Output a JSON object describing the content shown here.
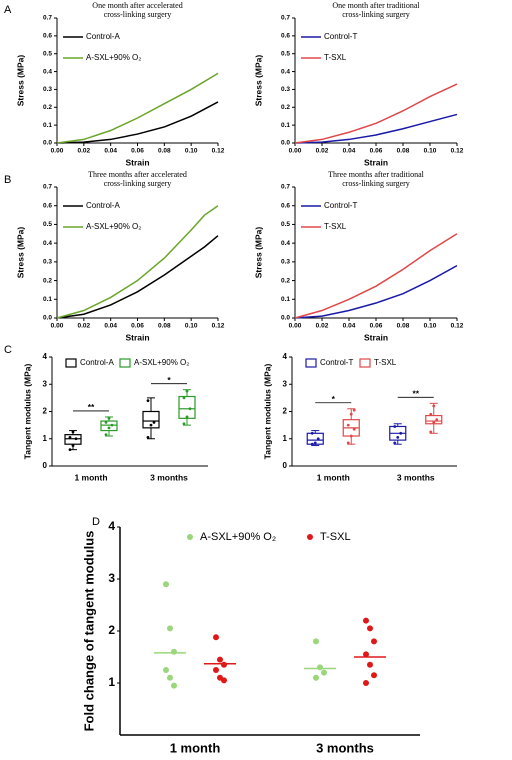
{
  "panel_labels": [
    "A",
    "B",
    "C",
    "D"
  ],
  "chart_data": [
    {
      "type": "line",
      "title": [
        "One month after accelerated",
        "cross-linking  surgery"
      ],
      "x_label": "Strain",
      "y_label": "Stress (MPa)",
      "x": [
        0,
        0.02,
        0.04,
        0.06,
        0.08,
        0.1,
        0.12
      ],
      "xlim": [
        0,
        0.12
      ],
      "ylim": [
        0,
        0.7
      ],
      "xticks": [
        {
          "value": 0,
          "label": "0.00"
        },
        0.02,
        0.04,
        0.06,
        0.08,
        {
          "value": 0.1,
          "label": "0.10"
        },
        0.12
      ],
      "yticks": [
        {
          "value": 0,
          "label": "0.0"
        },
        0.1,
        0.2,
        0.3,
        0.4,
        0.5,
        0.6,
        0.7
      ],
      "legend": "upper left",
      "series": [
        {
          "name": "Control-A",
          "color": "#000000",
          "values": [
            0,
            0.005,
            0.02,
            0.05,
            0.09,
            0.15,
            0.23
          ]
        },
        {
          "name": "A-SXL+90% O₂",
          "color": "#6aa52a",
          "values": [
            0,
            0.02,
            0.07,
            0.14,
            0.22,
            0.3,
            0.39
          ]
        }
      ]
    },
    {
      "type": "line",
      "title": [
        "One month after traditional",
        "cross-linking surgery"
      ],
      "x_label": "Strain",
      "y_label": "Stress (MPa)",
      "x": [
        0,
        0.02,
        0.04,
        0.06,
        0.08,
        0.1,
        0.12
      ],
      "xlim": [
        0,
        0.12
      ],
      "ylim": [
        0,
        0.7
      ],
      "xticks": [
        {
          "value": 0,
          "label": "0.00"
        },
        0.02,
        0.04,
        0.06,
        0.08,
        {
          "value": 0.1,
          "label": "0.10"
        },
        0.12
      ],
      "yticks": [
        {
          "value": 0,
          "label": "0.0"
        },
        0.1,
        0.2,
        0.3,
        0.4,
        0.5,
        0.6,
        0.7
      ],
      "legend": "upper left",
      "series": [
        {
          "name": "Control-T",
          "color": "#1a1aa8",
          "values": [
            0,
            0.005,
            0.02,
            0.045,
            0.08,
            0.12,
            0.16
          ]
        },
        {
          "name": "T-SXL",
          "color": "#e04848",
          "values": [
            0,
            0.02,
            0.06,
            0.11,
            0.18,
            0.26,
            0.33
          ]
        }
      ]
    },
    {
      "type": "line",
      "title": [
        "Three months after accelerated",
        "cross-linking surgery"
      ],
      "x_label": "Strain",
      "y_label": "Stress (MPa)",
      "x": [
        0,
        0.02,
        0.04,
        0.06,
        0.08,
        0.1,
        0.11,
        0.12
      ],
      "xlim": [
        0,
        0.12
      ],
      "ylim": [
        0,
        0.7
      ],
      "xticks": [
        {
          "value": 0,
          "label": "0.00"
        },
        0.02,
        0.04,
        0.06,
        0.08,
        {
          "value": 0.1,
          "label": "0.10"
        },
        0.12
      ],
      "yticks": [
        {
          "value": 0,
          "label": "0.0"
        },
        0.1,
        0.2,
        0.3,
        0.4,
        0.5,
        0.6,
        0.7
      ],
      "legend": "upper left",
      "series": [
        {
          "name": "Control-A",
          "color": "#000000",
          "values": [
            0,
            0.02,
            0.07,
            0.14,
            0.23,
            0.33,
            0.38,
            0.44
          ]
        },
        {
          "name": "A-SXL+90% O₂",
          "color": "#6aa52a",
          "values": [
            0,
            0.04,
            0.11,
            0.2,
            0.32,
            0.47,
            0.55,
            0.6
          ]
        }
      ]
    },
    {
      "type": "line",
      "title": [
        "Three months after traditional",
        "cross-linking surgery"
      ],
      "x_label": "Strain",
      "y_label": "Stress (MPa)",
      "x": [
        0,
        0.02,
        0.04,
        0.06,
        0.08,
        0.1,
        0.12
      ],
      "xlim": [
        0,
        0.12
      ],
      "ylim": [
        0,
        0.7
      ],
      "xticks": [
        {
          "value": 0,
          "label": "0.00"
        },
        0.02,
        0.04,
        0.06,
        0.08,
        {
          "value": 0.1,
          "label": "0.10"
        },
        0.12
      ],
      "yticks": [
        {
          "value": 0,
          "label": "0.0"
        },
        0.1,
        0.2,
        0.3,
        0.4,
        0.5,
        0.6,
        0.7
      ],
      "legend": "upper left",
      "series": [
        {
          "name": "Control-T",
          "color": "#1a1aa8",
          "values": [
            0,
            0.01,
            0.04,
            0.08,
            0.13,
            0.2,
            0.28
          ]
        },
        {
          "name": "T-SXL",
          "color": "#e04848",
          "values": [
            0,
            0.04,
            0.1,
            0.17,
            0.26,
            0.36,
            0.45
          ]
        }
      ]
    },
    {
      "type": "box",
      "y_label": "Tangent modulus (MPa)",
      "categories": [
        "1 month",
        "3 months"
      ],
      "ylim": [
        0,
        4
      ],
      "yticks": [
        0,
        1,
        2,
        3,
        4
      ],
      "annotations": [
        {
          "text": "**",
          "category": 0
        },
        {
          "text": "*",
          "category": 1
        }
      ],
      "series": [
        {
          "name": "Control-A",
          "color": "#000000",
          "min": [
            0.6,
            1.0
          ],
          "q1": [
            0.8,
            1.4
          ],
          "median": [
            1.0,
            1.65
          ],
          "q3": [
            1.15,
            2.0
          ],
          "max": [
            1.3,
            2.5
          ],
          "points": [
            [
              0.6,
              0.75,
              1.0,
              1.05,
              1.25
            ],
            [
              1.05,
              1.5,
              1.6,
              2.4
            ]
          ]
        },
        {
          "name": "A-SXL+90% O₂",
          "color": "#2a9a2a",
          "min": [
            1.1,
            1.5
          ],
          "q1": [
            1.3,
            1.75
          ],
          "median": [
            1.5,
            2.1
          ],
          "q3": [
            1.65,
            2.55
          ],
          "max": [
            1.8,
            2.8
          ],
          "points": [
            [
              1.15,
              1.4,
              1.5,
              1.6,
              1.75
            ],
            [
              1.55,
              1.8,
              2.1,
              2.5,
              2.75
            ]
          ]
        }
      ]
    },
    {
      "type": "box",
      "y_label": "Tangent modulus (MPa)",
      "categories": [
        "1 month",
        "3 months"
      ],
      "ylim": [
        0,
        4
      ],
      "yticks": [
        0,
        1,
        2,
        3,
        4
      ],
      "annotations": [
        {
          "text": "*",
          "category": 0
        },
        {
          "text": "**",
          "category": 1
        }
      ],
      "series": [
        {
          "name": "Control-T",
          "color": "#1a1aa8",
          "min": [
            0.75,
            0.8
          ],
          "q1": [
            0.8,
            0.95
          ],
          "median": [
            0.95,
            1.2
          ],
          "q3": [
            1.2,
            1.45
          ],
          "max": [
            1.3,
            1.55
          ],
          "points": [
            [
              0.8,
              0.85,
              1.0,
              1.2
            ],
            [
              0.85,
              1.05,
              1.2,
              1.45
            ]
          ]
        },
        {
          "name": "T-SXL",
          "color": "#e04848",
          "min": [
            0.8,
            1.2
          ],
          "q1": [
            1.1,
            1.55
          ],
          "median": [
            1.4,
            1.65
          ],
          "q3": [
            1.7,
            1.85
          ],
          "max": [
            2.1,
            2.3
          ],
          "points": [
            [
              0.85,
              1.1,
              1.35,
              1.5,
              1.9,
              2.05
            ],
            [
              1.25,
              1.6,
              1.7,
              1.9,
              2.2
            ]
          ]
        }
      ]
    },
    {
      "type": "strip",
      "y_label": "Fold change of tangent modulus",
      "categories": [
        "1 month",
        "3 months"
      ],
      "ylim": [
        0,
        4
      ],
      "yticks": [
        1,
        2,
        3,
        4
      ],
      "series": [
        {
          "name": "A-SXL+90% O₂",
          "color": "#9ad67a",
          "values": [
            [
              2.9,
              2.05,
              1.6,
              1.25,
              1.1,
              0.95
            ],
            [
              1.8,
              1.3,
              1.2,
              1.1
            ]
          ],
          "means": [
            1.58,
            1.28
          ]
        },
        {
          "name": "T-SXL",
          "color": "#e01818",
          "values": [
            [
              1.88,
              1.45,
              1.35,
              1.25,
              1.1,
              1.05
            ],
            [
              2.2,
              2.05,
              1.8,
              1.55,
              1.35,
              1.15,
              1.0
            ]
          ],
          "means": [
            1.37,
            1.5
          ]
        }
      ]
    }
  ]
}
